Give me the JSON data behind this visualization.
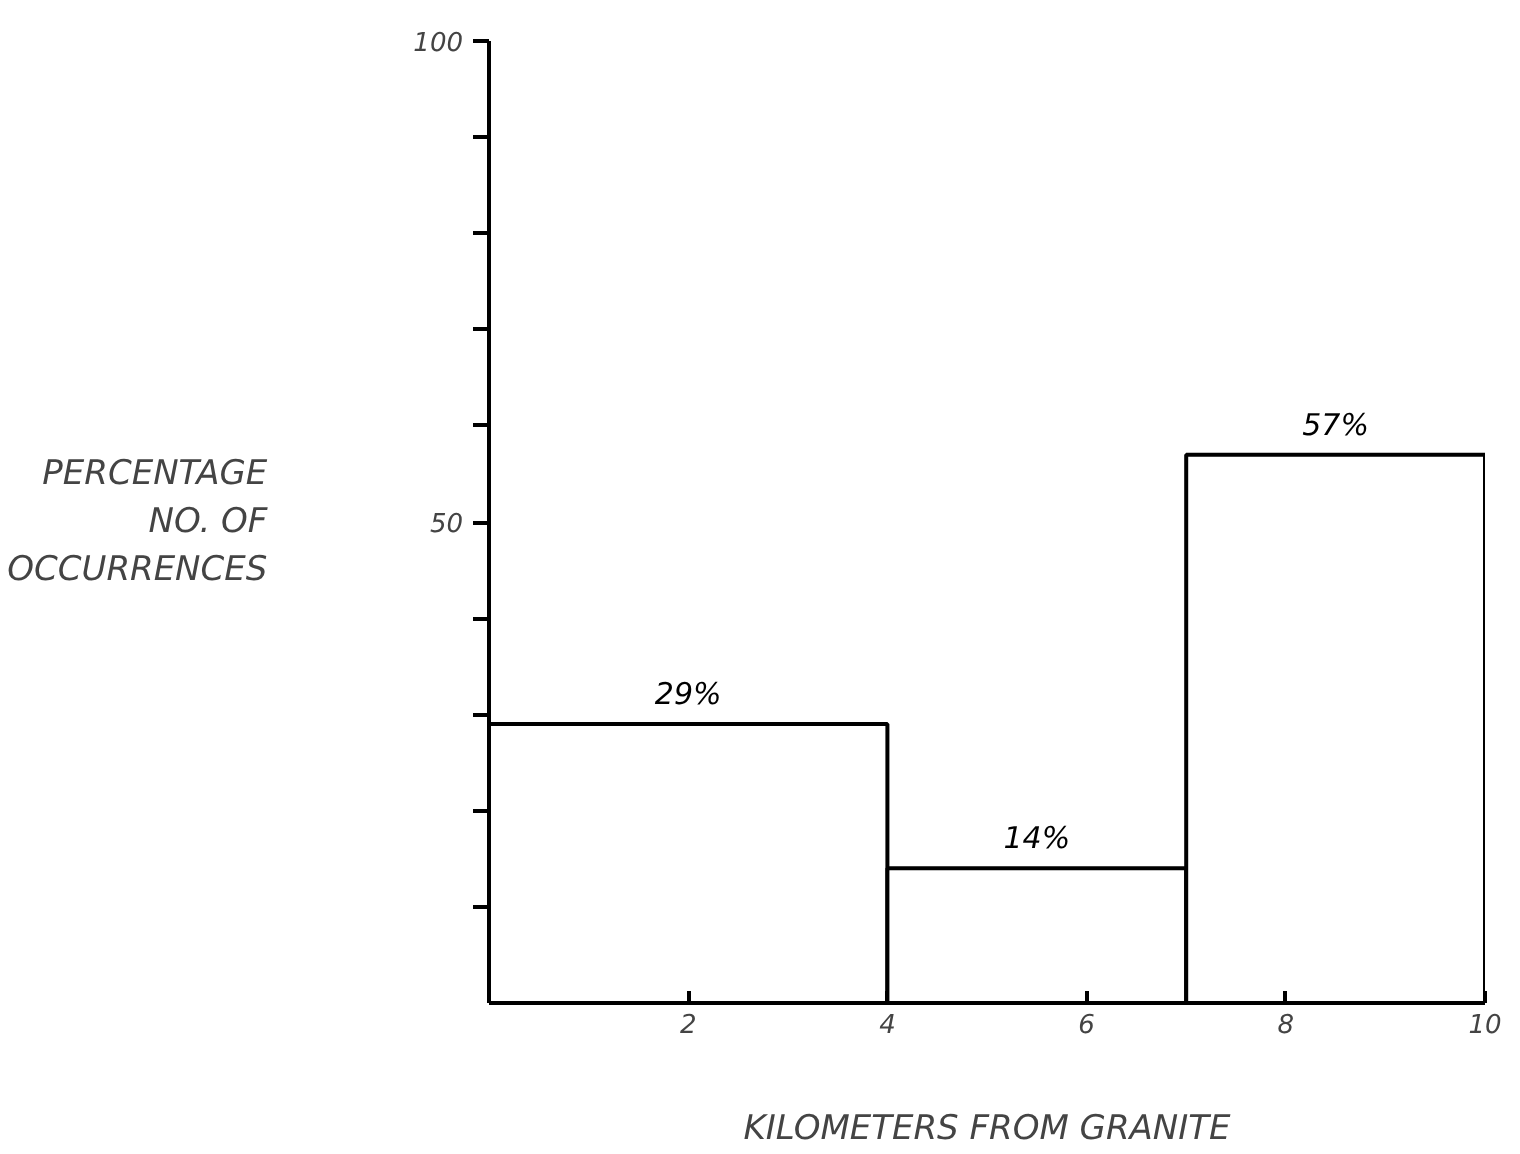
{
  "chart_data": {
    "type": "histogram",
    "xlabel": "KILOMETERS FROM GRANITE",
    "ylabel": "PERCENTAGE\nNO. OF\nOCCURRENCES",
    "bins": [
      0,
      4,
      7,
      10
    ],
    "values": [
      29,
      14,
      57
    ],
    "value_labels": [
      "29%",
      "14%",
      "57%"
    ],
    "color": "#ffffff",
    "xlim": [
      0,
      10
    ],
    "xticks": [
      2,
      4,
      6,
      8,
      10
    ],
    "ylim": [
      0,
      100
    ],
    "yticks": [
      {
        "value": 10,
        "label": null
      },
      {
        "value": 20,
        "label": null
      },
      {
        "value": 30,
        "label": null
      },
      {
        "value": 40,
        "label": null
      },
      50,
      {
        "value": 60,
        "label": null
      },
      {
        "value": 70,
        "label": null
      },
      {
        "value": 80,
        "label": null
      },
      {
        "value": 90,
        "label": null
      },
      100
    ],
    "grid": false
  }
}
